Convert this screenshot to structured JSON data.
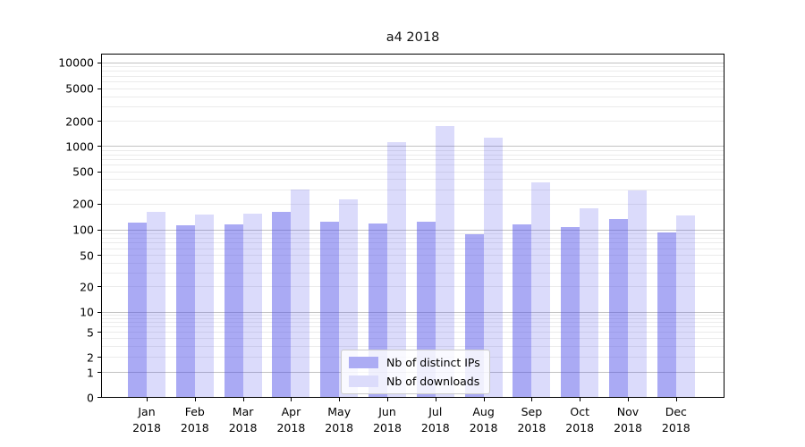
{
  "chart_data": {
    "type": "bar",
    "title": "a4 2018",
    "xlabel": "",
    "ylabel": "",
    "yscale": "symlog",
    "grid": true,
    "legend_position": "lower center",
    "categories": [
      "Jan 2018",
      "Feb 2018",
      "Mar 2018",
      "Apr 2018",
      "May 2018",
      "Jun 2018",
      "Jul 2018",
      "Aug 2018",
      "Sep 2018",
      "Oct 2018",
      "Nov 2018",
      "Dec 2018"
    ],
    "x_months": [
      "Jan",
      "Feb",
      "Mar",
      "Apr",
      "May",
      "Jun",
      "Jul",
      "Aug",
      "Sep",
      "Oct",
      "Nov",
      "Dec"
    ],
    "x_year": "2018",
    "y_ticks": [
      0,
      1,
      2,
      5,
      10,
      20,
      50,
      100,
      200,
      500,
      1000,
      2000,
      5000,
      10000
    ],
    "y_tick_labels": [
      "0",
      "1",
      "2",
      "5",
      "10",
      "20",
      "50",
      "100",
      "200",
      "500",
      "1000",
      "2000",
      "5000",
      "10000"
    ],
    "ylim": [
      0,
      14000
    ],
    "series": [
      {
        "name": "Nb of distinct IPs",
        "color": "rgba(77,77,233,0.48)",
        "solid_color": "#acacf4",
        "values": [
          120,
          112,
          115,
          160,
          124,
          118,
          123,
          88,
          114,
          107,
          133,
          92
        ]
      },
      {
        "name": "Nb of downloads",
        "color": "rgba(77,77,233,0.20)",
        "solid_color": "#dcdcfb",
        "values": [
          160,
          148,
          152,
          300,
          225,
          1120,
          1730,
          1270,
          365,
          174,
          287,
          146
        ]
      }
    ]
  }
}
